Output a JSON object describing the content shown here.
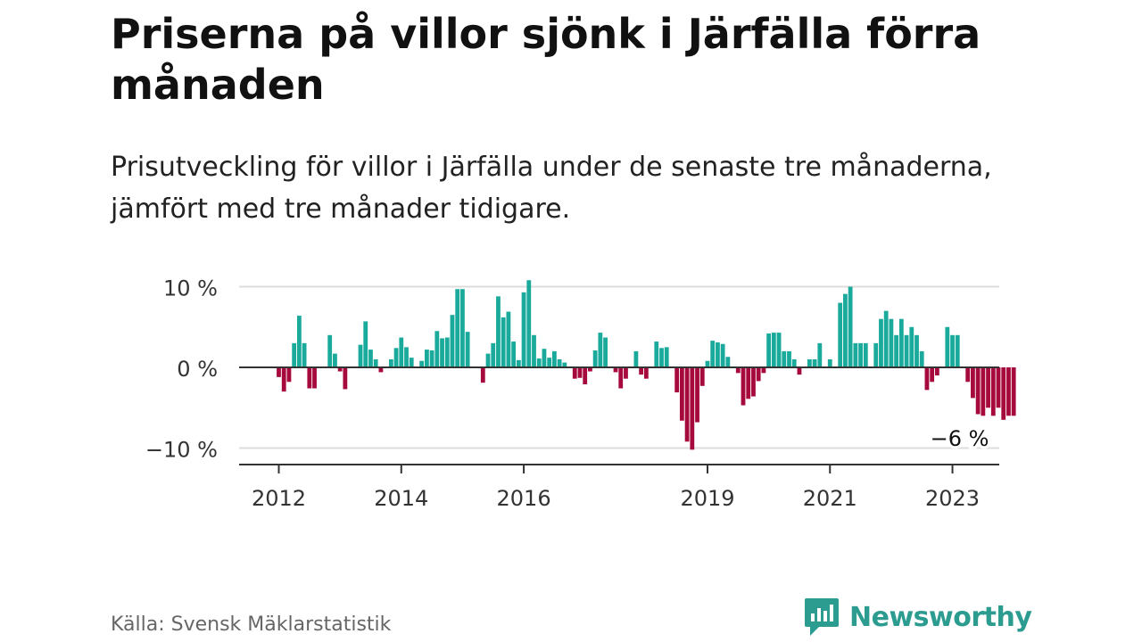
{
  "header": {
    "title": "Priserna på villor sjönk i Järfälla förra månaden",
    "subtitle": "Prisutveckling för villor i Järfälla under de senaste tre månaderna, jämfört med tre månader tidigare."
  },
  "footer": {
    "source": "Källa: Svensk Mäklarstatistik",
    "brand": "Newsworthy"
  },
  "colors": {
    "positive": "#1aaa9b",
    "negative": "#a60a3d",
    "brand": "#2b9c8f"
  },
  "chart_data": {
    "type": "bar",
    "title": "",
    "xlabel": "",
    "ylabel": "",
    "ylim": [
      -12,
      12
    ],
    "y_ticks": [
      {
        "value": 10,
        "label": "10 %"
      },
      {
        "value": 0,
        "label": "0 %"
      },
      {
        "value": -10,
        "label": "−10 %"
      }
    ],
    "x_ticks": [
      {
        "label": "2012",
        "index": 0
      },
      {
        "label": "2014",
        "index": 24
      },
      {
        "label": "2016",
        "index": 48
      },
      {
        "label": "2019",
        "index": 84
      },
      {
        "label": "2021",
        "index": 108
      },
      {
        "label": "2023",
        "index": 132
      }
    ],
    "annotation": {
      "label": "−6 %",
      "index": 132
    },
    "grid": true,
    "legend": "none",
    "series": [
      {
        "values": [
          -1.2,
          -3.0,
          -1.8,
          3.0,
          6.4,
          3.0,
          -2.6,
          -2.6,
          0,
          0,
          4.0,
          1.7,
          -0.5,
          -2.7,
          0,
          0,
          2.8,
          5.7,
          2.2,
          1.0,
          -0.6,
          0,
          1.0,
          2.4,
          3.7,
          2.5,
          1.2,
          0,
          0.8,
          2.2,
          2.1,
          4.5,
          3.6,
          3.7,
          6.5,
          9.7,
          9.7,
          4.4,
          0,
          0,
          -1.9,
          1.7,
          3.0,
          8.8,
          6.2,
          6.9,
          3.2,
          0.9,
          9.3,
          10.8,
          4.0,
          1.1,
          2.3,
          1.2,
          2.0,
          1.0,
          0.6,
          0,
          -1.4,
          -1.3,
          -2.1,
          -0.5,
          2.1,
          4.3,
          3.7,
          0,
          -0.6,
          -2.6,
          -1.4,
          0,
          2.0,
          -0.9,
          -1.4,
          0,
          3.2,
          2.4,
          2.5,
          0,
          -3.1,
          -6.6,
          -9.2,
          -10.2,
          -6.8,
          -2.3,
          0.8,
          3.3,
          3.1,
          2.9,
          1.3,
          0,
          -0.7,
          -4.7,
          -3.9,
          -3.6,
          -1.7,
          -0.7,
          4.2,
          4.3,
          4.3,
          2.0,
          2.0,
          1.0,
          -0.9,
          0,
          1.0,
          1.0,
          3.0,
          0,
          1.0,
          0,
          8.0,
          9.1,
          10.0,
          3.0,
          3.0,
          3.0,
          0,
          3.0,
          6.0,
          7.0,
          6.0,
          4.0,
          6.0,
          4.0,
          5.0,
          4.0,
          2.0,
          -2.8,
          -1.8,
          -1.0,
          0,
          5.0,
          4.0,
          4.0,
          0,
          -1.8,
          -3.8,
          -5.8,
          -6.0,
          -5.0,
          -6.0,
          -5.0,
          -6.5,
          -6.0,
          -6.0
        ]
      }
    ]
  }
}
